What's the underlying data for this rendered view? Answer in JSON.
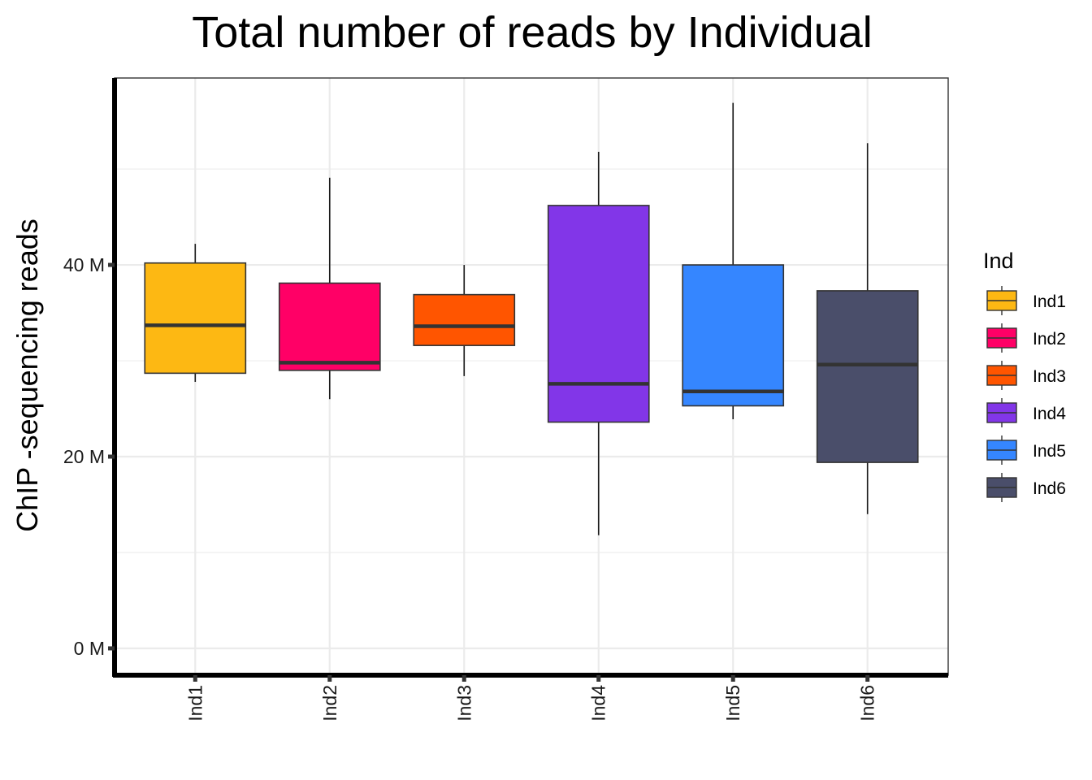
{
  "chart_data": {
    "type": "boxplot",
    "title": "Total number of reads by Individual",
    "xlabel": "",
    "ylabel": "ChIP -sequencing reads",
    "ylim": [
      -2.8,
      59.5
    ],
    "yticks": [
      0,
      20,
      40
    ],
    "ytick_labels": [
      "0 M",
      "20 M",
      "40 M"
    ],
    "categories": [
      "Ind1",
      "Ind2",
      "Ind3",
      "Ind4",
      "Ind5",
      "Ind6"
    ],
    "colors": [
      "#FDB813",
      "#FF0066",
      "#FF5500",
      "#8236E8",
      "#3586FF",
      "#4A4E6A"
    ],
    "boxes": [
      {
        "name": "Ind1",
        "min": 27.8,
        "q1": 28.7,
        "median": 33.7,
        "q3": 40.2,
        "max": 42.2
      },
      {
        "name": "Ind2",
        "min": 26.0,
        "q1": 29.0,
        "median": 29.8,
        "q3": 38.1,
        "max": 49.1
      },
      {
        "name": "Ind3",
        "min": 28.4,
        "q1": 31.6,
        "median": 33.6,
        "q3": 36.9,
        "max": 40.0
      },
      {
        "name": "Ind4",
        "min": 11.8,
        "q1": 23.6,
        "median": 27.6,
        "q3": 46.2,
        "max": 51.8
      },
      {
        "name": "Ind5",
        "min": 23.9,
        "q1": 25.3,
        "median": 26.8,
        "q3": 40.0,
        "max": 56.9
      },
      {
        "name": "Ind6",
        "min": 14.0,
        "q1": 19.4,
        "median": 29.6,
        "q3": 37.3,
        "max": 52.7
      }
    ],
    "legend": {
      "title": "Ind",
      "position": "right",
      "entries": [
        "Ind1",
        "Ind2",
        "Ind3",
        "Ind4",
        "Ind5",
        "Ind6"
      ]
    },
    "grid": true
  }
}
